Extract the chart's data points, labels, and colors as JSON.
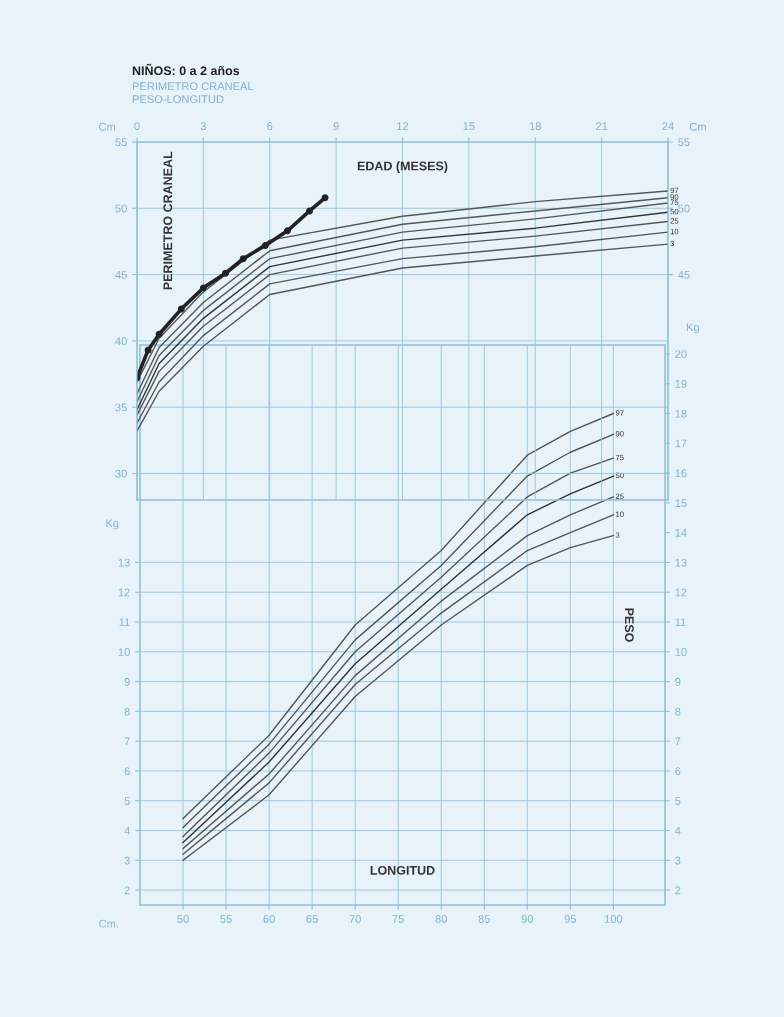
{
  "chart_data": [
    {
      "type": "line",
      "title": "NIÑOS: 0 a 2 años",
      "subtitle": "PERIMETRO CRANEAL",
      "xlabel": "EDAD (MESES)",
      "ylabel": "PERIMETRO CRANEAL",
      "annotations": [
        "Cm",
        "Cm"
      ],
      "xlim": [
        0,
        24
      ],
      "xticks": [
        0,
        3,
        6,
        9,
        12,
        15,
        18,
        21,
        24
      ],
      "ylim": [
        28,
        55
      ],
      "yticks": [
        30,
        35,
        40,
        45,
        50,
        55
      ],
      "y2lim": [
        28,
        55
      ],
      "y2ticks": [
        45,
        50,
        55
      ],
      "grid": true,
      "legend": false,
      "series": [
        {
          "name": "97",
          "color": "#555555",
          "x": [
            0,
            1,
            3,
            6,
            12,
            18,
            24
          ],
          "values": [
            36.9,
            40.2,
            43.7,
            47.6,
            49.4,
            50.5,
            51.3
          ]
        },
        {
          "name": "90",
          "color": "#555555",
          "x": [
            0,
            1,
            3,
            6,
            12,
            18,
            24
          ],
          "values": [
            36.0,
            39.5,
            42.9,
            46.8,
            48.8,
            49.8,
            50.8
          ]
        },
        {
          "name": "75",
          "color": "#555555",
          "x": [
            0,
            1,
            3,
            6,
            12,
            18,
            24
          ],
          "values": [
            35.4,
            38.9,
            42.3,
            46.2,
            48.2,
            49.2,
            50.4
          ]
        },
        {
          "name": "50",
          "color": "#333333",
          "x": [
            0,
            1,
            3,
            6,
            12,
            18,
            24
          ],
          "values": [
            34.8,
            38.3,
            41.7,
            45.6,
            47.6,
            48.5,
            49.7
          ]
        },
        {
          "name": "25",
          "color": "#555555",
          "x": [
            0,
            1,
            3,
            6,
            12,
            18,
            24
          ],
          "values": [
            34.4,
            37.7,
            41.1,
            45.0,
            47.0,
            47.9,
            49.0
          ]
        },
        {
          "name": "10",
          "color": "#555555",
          "x": [
            0,
            1,
            3,
            6,
            12,
            18,
            24
          ],
          "values": [
            33.8,
            36.9,
            40.4,
            44.3,
            46.2,
            47.1,
            48.2
          ]
        },
        {
          "name": "3",
          "color": "#555555",
          "x": [
            0,
            1,
            3,
            6,
            12,
            18,
            24
          ],
          "values": [
            33.2,
            36.2,
            39.6,
            43.5,
            45.5,
            46.4,
            47.3
          ]
        },
        {
          "color": "#222222",
          "marker": "circle",
          "x": [
            0,
            0.5,
            1,
            2,
            3,
            4,
            4.8,
            5.8,
            6.8,
            7.8,
            8.5
          ],
          "values": [
            37.2,
            39.3,
            40.5,
            42.4,
            44.0,
            45.1,
            46.2,
            47.2,
            48.3,
            49.8,
            50.8
          ]
        }
      ]
    },
    {
      "type": "line",
      "subtitle": "PESO-LONGITUD",
      "xlabel": "LONGITUD",
      "y2label": "PESO",
      "annotations": [
        "Kg",
        "Kg",
        "Cm."
      ],
      "xlim": [
        45,
        106
      ],
      "xticks": [
        50,
        55,
        60,
        65,
        70,
        75,
        80,
        85,
        90,
        95,
        100
      ],
      "ylim": [
        1.5,
        20.3
      ],
      "yticks": [
        2,
        3,
        4,
        5,
        6,
        7,
        8,
        9,
        10,
        11,
        12,
        13
      ],
      "y2lim": [
        1.5,
        20.3
      ],
      "y2ticks": [
        2,
        3,
        4,
        5,
        6,
        7,
        8,
        9,
        10,
        11,
        12,
        13,
        14,
        15,
        16,
        17,
        18,
        19,
        20
      ],
      "grid": true,
      "legend": false,
      "series": [
        {
          "name": "97",
          "color": "#555555",
          "x": [
            50,
            60,
            70,
            80,
            90,
            95,
            100
          ],
          "values": [
            4.4,
            7.2,
            10.9,
            13.4,
            16.6,
            17.4,
            18.0
          ]
        },
        {
          "name": "90",
          "color": "#555555",
          "x": [
            50,
            60,
            70,
            80,
            90,
            95,
            100
          ],
          "values": [
            4.1,
            6.9,
            10.4,
            12.9,
            15.9,
            16.7,
            17.3
          ]
        },
        {
          "name": "75",
          "color": "#555555",
          "x": [
            50,
            60,
            70,
            80,
            90,
            95,
            100
          ],
          "values": [
            3.8,
            6.6,
            10.0,
            12.5,
            15.2,
            16.0,
            16.5
          ]
        },
        {
          "name": "50",
          "color": "#333333",
          "x": [
            50,
            60,
            70,
            80,
            90,
            95,
            100
          ],
          "values": [
            3.6,
            6.3,
            9.6,
            12.1,
            14.6,
            15.3,
            15.9
          ]
        },
        {
          "name": "25",
          "color": "#555555",
          "x": [
            50,
            60,
            70,
            80,
            90,
            95,
            100
          ],
          "values": [
            3.4,
            5.9,
            9.2,
            11.7,
            13.9,
            14.6,
            15.2
          ]
        },
        {
          "name": "10",
          "color": "#555555",
          "x": [
            50,
            60,
            70,
            80,
            90,
            95,
            100
          ],
          "values": [
            3.2,
            5.6,
            8.9,
            11.3,
            13.4,
            14.0,
            14.6
          ]
        },
        {
          "name": "3",
          "color": "#555555",
          "x": [
            50,
            60,
            70,
            80,
            90,
            95,
            100
          ],
          "values": [
            3.0,
            5.2,
            8.5,
            10.9,
            12.9,
            13.5,
            13.9
          ]
        }
      ]
    }
  ]
}
